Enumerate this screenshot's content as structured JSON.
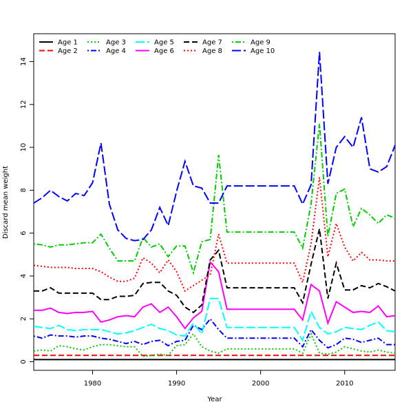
{
  "chart_data": {
    "type": "line",
    "title": "",
    "xlabel": "Year",
    "ylabel": "Discard mean weight",
    "xlim": [
      1973,
      2016
    ],
    "ylim": [
      -0.4,
      15.3
    ],
    "x_ticks": [
      1980,
      1990,
      2000,
      2010
    ],
    "y_ticks": [
      0,
      2,
      4,
      6,
      8,
      10,
      12,
      14
    ],
    "legend_position": "top-left",
    "grid": false,
    "x": [
      1973,
      1974,
      1975,
      1976,
      1977,
      1978,
      1979,
      1980,
      1981,
      1982,
      1983,
      1984,
      1985,
      1986,
      1987,
      1988,
      1989,
      1990,
      1991,
      1992,
      1993,
      1994,
      1995,
      1996,
      1997,
      1998,
      1999,
      2000,
      2001,
      2002,
      2003,
      2004,
      2005,
      2006,
      2007,
      2008,
      2009,
      2010,
      2011,
      2012,
      2013,
      2014,
      2015,
      2016
    ],
    "series": [
      {
        "name": "Age 1",
        "color": "#000000",
        "dash": "solid",
        "values": [
          0.1,
          0.1,
          0.1,
          0.1,
          0.1,
          0.1,
          0.1,
          0.1,
          0.1,
          0.1,
          0.1,
          0.1,
          0.1,
          0.1,
          0.1,
          0.1,
          0.1,
          0.1,
          0.1,
          0.1,
          0.1,
          0.1,
          0.1,
          0.1,
          0.1,
          0.1,
          0.1,
          0.1,
          0.1,
          0.1,
          0.1,
          0.1,
          0.1,
          0.1,
          0.1,
          0.1,
          0.1,
          0.1,
          0.1,
          0.1,
          0.1,
          0.1,
          0.1,
          0.1
        ]
      },
      {
        "name": "Age 2",
        "color": "#ff0000",
        "dash": "dashed",
        "values": [
          0.3,
          0.3,
          0.3,
          0.3,
          0.3,
          0.3,
          0.3,
          0.3,
          0.3,
          0.3,
          0.3,
          0.3,
          0.3,
          0.3,
          0.3,
          0.3,
          0.3,
          0.3,
          0.3,
          0.3,
          0.3,
          0.3,
          0.3,
          0.3,
          0.3,
          0.3,
          0.3,
          0.3,
          0.3,
          0.3,
          0.3,
          0.3,
          0.3,
          0.3,
          0.3,
          0.3,
          0.3,
          0.3,
          0.3,
          0.3,
          0.3,
          0.3,
          0.3,
          0.3
        ]
      },
      {
        "name": "Age 3",
        "color": "#00cd00",
        "dash": "dotted",
        "values": [
          0.5,
          0.55,
          0.5,
          0.75,
          0.7,
          0.6,
          0.55,
          0.7,
          0.8,
          0.8,
          0.75,
          0.7,
          0.7,
          0.25,
          0.3,
          0.35,
          0.3,
          0.75,
          0.8,
          1.3,
          0.7,
          0.5,
          0.4,
          0.6,
          0.6,
          0.6,
          0.6,
          0.6,
          0.6,
          0.6,
          0.6,
          0.6,
          0.4,
          1.3,
          0.4,
          0.35,
          0.45,
          0.7,
          0.6,
          0.5,
          0.45,
          0.55,
          0.45,
          0.4
        ]
      },
      {
        "name": "Age 4",
        "color": "#0000ff",
        "dash": "dotdash",
        "values": [
          1.2,
          1.1,
          1.25,
          1.2,
          1.2,
          1.15,
          1.2,
          1.2,
          1.1,
          1.05,
          0.95,
          0.85,
          0.95,
          0.8,
          0.95,
          1.0,
          0.75,
          0.95,
          1.0,
          1.7,
          1.5,
          2.0,
          1.5,
          1.1,
          1.1,
          1.1,
          1.1,
          1.1,
          1.1,
          1.1,
          1.1,
          1.1,
          0.7,
          1.5,
          1.0,
          0.65,
          0.8,
          1.1,
          1.05,
          0.9,
          1.0,
          1.1,
          0.8,
          0.8
        ]
      },
      {
        "name": "Age 5",
        "color": "#00ffff",
        "dash": "longdash",
        "values": [
          1.65,
          1.6,
          1.55,
          1.7,
          1.5,
          1.45,
          1.5,
          1.5,
          1.5,
          1.4,
          1.3,
          1.35,
          1.45,
          1.6,
          1.75,
          1.55,
          1.45,
          1.25,
          1.2,
          1.8,
          1.3,
          2.95,
          2.95,
          1.6,
          1.6,
          1.6,
          1.6,
          1.6,
          1.6,
          1.6,
          1.6,
          1.6,
          1.0,
          2.35,
          1.6,
          1.3,
          1.4,
          1.6,
          1.55,
          1.5,
          1.7,
          1.85,
          1.45,
          1.4
        ]
      },
      {
        "name": "Age 6",
        "color": "#ff00ff",
        "dash": "solid",
        "values": [
          2.4,
          2.4,
          2.5,
          2.3,
          2.25,
          2.3,
          2.3,
          2.35,
          1.85,
          1.95,
          2.1,
          2.15,
          2.1,
          2.55,
          2.7,
          2.3,
          2.55,
          2.1,
          1.55,
          2.05,
          2.35,
          4.65,
          4.2,
          2.45,
          2.45,
          2.45,
          2.45,
          2.45,
          2.45,
          2.45,
          2.45,
          2.45,
          1.95,
          3.6,
          3.3,
          1.8,
          2.8,
          2.55,
          2.3,
          2.35,
          2.3,
          2.6,
          2.1,
          2.15
        ]
      },
      {
        "name": "Age 7",
        "color": "#000000",
        "dash": "dashed",
        "values": [
          3.3,
          3.3,
          3.45,
          3.2,
          3.2,
          3.2,
          3.2,
          3.2,
          2.9,
          2.9,
          3.05,
          3.05,
          3.1,
          3.65,
          3.7,
          3.7,
          3.3,
          3.1,
          2.55,
          2.3,
          2.65,
          4.75,
          5.2,
          3.45,
          3.45,
          3.45,
          3.45,
          3.45,
          3.45,
          3.45,
          3.45,
          3.45,
          2.75,
          4.55,
          6.2,
          2.95,
          4.6,
          3.35,
          3.35,
          3.55,
          3.45,
          3.65,
          3.5,
          3.3
        ]
      },
      {
        "name": "Age 8",
        "color": "#ff0000",
        "dash": "dotted",
        "values": [
          4.5,
          4.45,
          4.4,
          4.4,
          4.4,
          4.35,
          4.35,
          4.35,
          4.2,
          3.95,
          3.75,
          3.75,
          3.9,
          4.85,
          4.6,
          4.15,
          4.75,
          4.2,
          3.3,
          3.55,
          3.8,
          4.05,
          5.95,
          4.6,
          4.6,
          4.6,
          4.6,
          4.6,
          4.6,
          4.6,
          4.6,
          4.6,
          3.7,
          5.5,
          8.6,
          4.9,
          6.45,
          5.35,
          4.7,
          5.1,
          4.75,
          4.75,
          4.7,
          4.7
        ]
      },
      {
        "name": "Age 9",
        "color": "#00cd00",
        "dash": "dotdash",
        "values": [
          5.5,
          5.45,
          5.35,
          5.45,
          5.45,
          5.5,
          5.55,
          5.55,
          5.95,
          5.3,
          4.7,
          4.7,
          4.7,
          5.8,
          5.35,
          5.5,
          4.9,
          5.4,
          5.4,
          4.15,
          5.6,
          5.7,
          9.65,
          6.05,
          6.05,
          6.05,
          6.05,
          6.05,
          6.05,
          6.05,
          6.05,
          6.05,
          5.3,
          7.35,
          11.1,
          5.85,
          7.85,
          8.05,
          6.3,
          7.15,
          6.85,
          6.45,
          6.85,
          6.7
        ]
      },
      {
        "name": "Age 10",
        "color": "#0000ff",
        "dash": "longdash",
        "values": [
          7.4,
          7.65,
          8.0,
          7.7,
          7.5,
          7.85,
          7.75,
          8.35,
          10.2,
          7.35,
          6.15,
          5.75,
          5.65,
          5.7,
          6.15,
          7.2,
          6.35,
          7.95,
          9.35,
          8.2,
          8.1,
          7.4,
          7.4,
          8.2,
          8.2,
          8.2,
          8.2,
          8.2,
          8.2,
          8.2,
          8.2,
          8.2,
          7.35,
          8.25,
          14.45,
          8.3,
          10.0,
          10.5,
          10.0,
          11.4,
          9.0,
          8.85,
          9.1,
          10.1
        ]
      }
    ]
  }
}
